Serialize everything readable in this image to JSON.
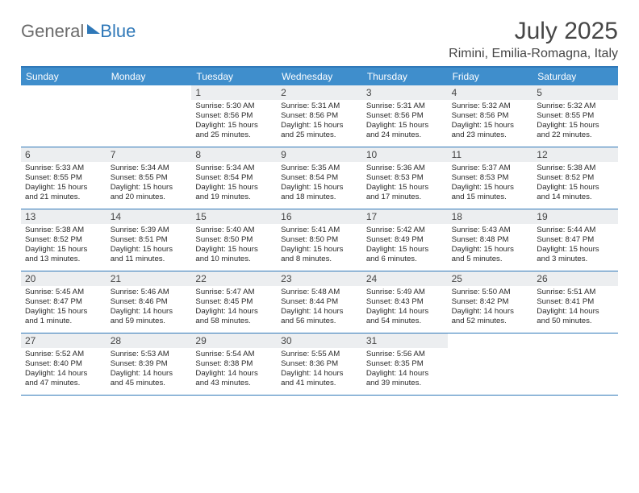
{
  "brand": {
    "general": "General",
    "blue": "Blue"
  },
  "title": {
    "month_year": "July 2025",
    "location": "Rimini, Emilia-Romagna, Italy"
  },
  "colors": {
    "accent": "#2f78b8",
    "header_row": "#3f8ecc",
    "daynum_bg": "#eceef0",
    "text": "#464646",
    "body": "#2a2a2a",
    "white": "#ffffff"
  },
  "layout": {
    "type": "calendar",
    "columns": 7,
    "weekday_fontsize": 12,
    "daynum_fontsize": 12,
    "body_fontsize": 9.6,
    "title_fontsize": 30,
    "location_fontsize": 16
  },
  "weekdays": [
    "Sunday",
    "Monday",
    "Tuesday",
    "Wednesday",
    "Thursday",
    "Friday",
    "Saturday"
  ],
  "weeks": [
    [
      null,
      null,
      {
        "n": "1",
        "sr": "5:30 AM",
        "ss": "8:56 PM",
        "dl": "15 hours and 25 minutes."
      },
      {
        "n": "2",
        "sr": "5:31 AM",
        "ss": "8:56 PM",
        "dl": "15 hours and 25 minutes."
      },
      {
        "n": "3",
        "sr": "5:31 AM",
        "ss": "8:56 PM",
        "dl": "15 hours and 24 minutes."
      },
      {
        "n": "4",
        "sr": "5:32 AM",
        "ss": "8:56 PM",
        "dl": "15 hours and 23 minutes."
      },
      {
        "n": "5",
        "sr": "5:32 AM",
        "ss": "8:55 PM",
        "dl": "15 hours and 22 minutes."
      }
    ],
    [
      {
        "n": "6",
        "sr": "5:33 AM",
        "ss": "8:55 PM",
        "dl": "15 hours and 21 minutes."
      },
      {
        "n": "7",
        "sr": "5:34 AM",
        "ss": "8:55 PM",
        "dl": "15 hours and 20 minutes."
      },
      {
        "n": "8",
        "sr": "5:34 AM",
        "ss": "8:54 PM",
        "dl": "15 hours and 19 minutes."
      },
      {
        "n": "9",
        "sr": "5:35 AM",
        "ss": "8:54 PM",
        "dl": "15 hours and 18 minutes."
      },
      {
        "n": "10",
        "sr": "5:36 AM",
        "ss": "8:53 PM",
        "dl": "15 hours and 17 minutes."
      },
      {
        "n": "11",
        "sr": "5:37 AM",
        "ss": "8:53 PM",
        "dl": "15 hours and 15 minutes."
      },
      {
        "n": "12",
        "sr": "5:38 AM",
        "ss": "8:52 PM",
        "dl": "15 hours and 14 minutes."
      }
    ],
    [
      {
        "n": "13",
        "sr": "5:38 AM",
        "ss": "8:52 PM",
        "dl": "15 hours and 13 minutes."
      },
      {
        "n": "14",
        "sr": "5:39 AM",
        "ss": "8:51 PM",
        "dl": "15 hours and 11 minutes."
      },
      {
        "n": "15",
        "sr": "5:40 AM",
        "ss": "8:50 PM",
        "dl": "15 hours and 10 minutes."
      },
      {
        "n": "16",
        "sr": "5:41 AM",
        "ss": "8:50 PM",
        "dl": "15 hours and 8 minutes."
      },
      {
        "n": "17",
        "sr": "5:42 AM",
        "ss": "8:49 PM",
        "dl": "15 hours and 6 minutes."
      },
      {
        "n": "18",
        "sr": "5:43 AM",
        "ss": "8:48 PM",
        "dl": "15 hours and 5 minutes."
      },
      {
        "n": "19",
        "sr": "5:44 AM",
        "ss": "8:47 PM",
        "dl": "15 hours and 3 minutes."
      }
    ],
    [
      {
        "n": "20",
        "sr": "5:45 AM",
        "ss": "8:47 PM",
        "dl": "15 hours and 1 minute."
      },
      {
        "n": "21",
        "sr": "5:46 AM",
        "ss": "8:46 PM",
        "dl": "14 hours and 59 minutes."
      },
      {
        "n": "22",
        "sr": "5:47 AM",
        "ss": "8:45 PM",
        "dl": "14 hours and 58 minutes."
      },
      {
        "n": "23",
        "sr": "5:48 AM",
        "ss": "8:44 PM",
        "dl": "14 hours and 56 minutes."
      },
      {
        "n": "24",
        "sr": "5:49 AM",
        "ss": "8:43 PM",
        "dl": "14 hours and 54 minutes."
      },
      {
        "n": "25",
        "sr": "5:50 AM",
        "ss": "8:42 PM",
        "dl": "14 hours and 52 minutes."
      },
      {
        "n": "26",
        "sr": "5:51 AM",
        "ss": "8:41 PM",
        "dl": "14 hours and 50 minutes."
      }
    ],
    [
      {
        "n": "27",
        "sr": "5:52 AM",
        "ss": "8:40 PM",
        "dl": "14 hours and 47 minutes."
      },
      {
        "n": "28",
        "sr": "5:53 AM",
        "ss": "8:39 PM",
        "dl": "14 hours and 45 minutes."
      },
      {
        "n": "29",
        "sr": "5:54 AM",
        "ss": "8:38 PM",
        "dl": "14 hours and 43 minutes."
      },
      {
        "n": "30",
        "sr": "5:55 AM",
        "ss": "8:36 PM",
        "dl": "14 hours and 41 minutes."
      },
      {
        "n": "31",
        "sr": "5:56 AM",
        "ss": "8:35 PM",
        "dl": "14 hours and 39 minutes."
      },
      null,
      null
    ]
  ],
  "labels": {
    "sunrise": "Sunrise: ",
    "sunset": "Sunset: ",
    "daylight": "Daylight: "
  }
}
